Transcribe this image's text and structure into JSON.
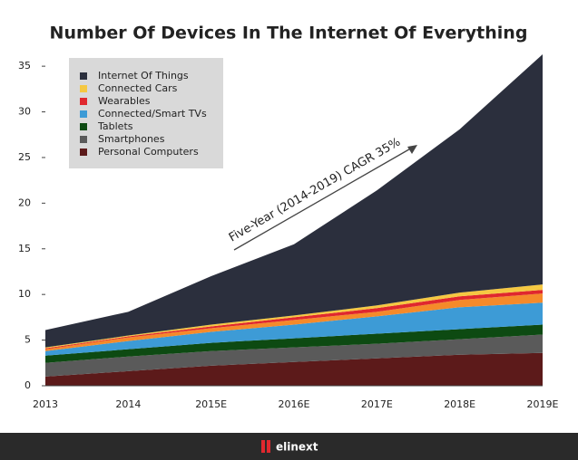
{
  "chart_data": {
    "type": "stacked_area",
    "title": "Number Of Devices In The Internet Of Everything",
    "annotation": "Five-Year (2014-2019) CAGR 35%",
    "categories": [
      "2013",
      "2014",
      "2015E",
      "2016E",
      "2017E",
      "2018E",
      "2019E"
    ],
    "series": [
      {
        "name": "Personal Computers",
        "color": "#5c1a1a",
        "values": [
          1.0,
          1.6,
          2.2,
          2.6,
          3.0,
          3.4,
          3.6
        ]
      },
      {
        "name": "Smartphones",
        "color": "#5a5a5a",
        "values": [
          1.5,
          1.6,
          1.6,
          1.6,
          1.6,
          1.7,
          2.0
        ]
      },
      {
        "name": "Tablets",
        "color": "#0d4a12",
        "values": [
          0.8,
          0.8,
          0.9,
          1.0,
          1.1,
          1.1,
          1.1
        ]
      },
      {
        "name": "Connected/Smart TVs",
        "color": "#3d9bd6",
        "values": [
          0.5,
          0.9,
          1.2,
          1.5,
          1.9,
          2.4,
          2.4
        ]
      },
      {
        "color": "#f58a2a",
        "values": [
          0.2,
          0.4,
          0.4,
          0.5,
          0.5,
          0.8,
          1.0
        ]
      },
      {
        "name": "Wearables",
        "color": "#e0282e",
        "values": [
          0.1,
          0.1,
          0.2,
          0.3,
          0.4,
          0.4,
          0.4
        ]
      },
      {
        "name": "Connected Cars",
        "color": "#f5c842",
        "values": [
          0.1,
          0.1,
          0.2,
          0.2,
          0.3,
          0.4,
          0.6
        ]
      },
      {
        "name": "Internet Of Things",
        "color": "#2b2f3d",
        "values": [
          1.9,
          2.6,
          5.3,
          7.8,
          12.6,
          17.9,
          25.2
        ]
      }
    ],
    "ylim": [
      0,
      36.5
    ],
    "yticks": [
      0,
      5,
      10,
      15,
      20,
      25,
      30,
      35
    ],
    "legend": "upper-left"
  },
  "footer": {
    "logo": "elinext"
  }
}
